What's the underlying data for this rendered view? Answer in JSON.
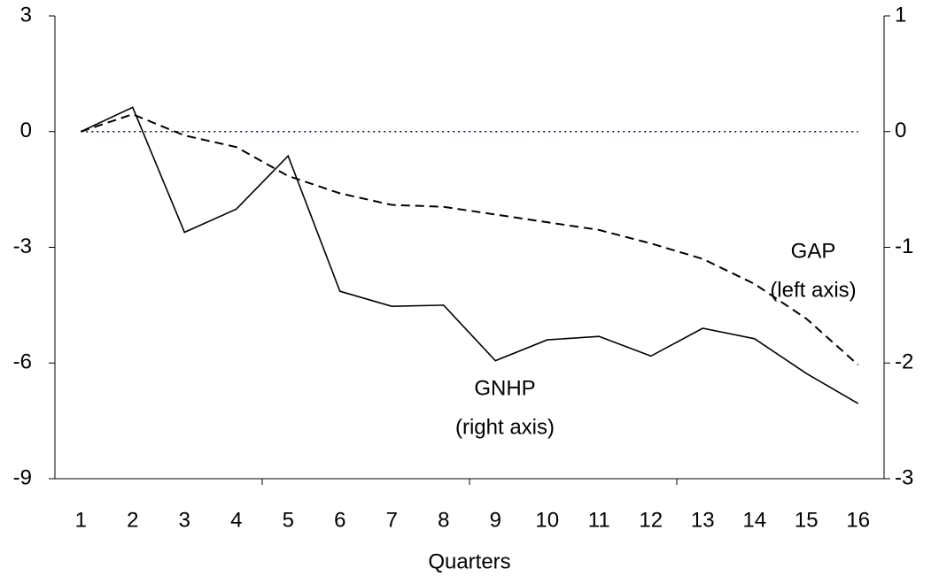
{
  "chart_data": {
    "type": "line",
    "xlabel": "Quarters",
    "categories": [
      "1",
      "2",
      "3",
      "4",
      "5",
      "6",
      "7",
      "8",
      "9",
      "10",
      "11",
      "12",
      "13",
      "14",
      "15",
      "16"
    ],
    "ylim": [
      -9,
      3
    ],
    "yticks": [
      -9,
      -6,
      -3,
      0,
      3
    ],
    "y2lim": [
      -3,
      1
    ],
    "y2ticks": [
      -3,
      -2,
      -1,
      0,
      1
    ],
    "hline": 0,
    "hline_color": "#000080",
    "series": [
      {
        "label": [
          "GAP",
          "(left axis)"
        ],
        "color": "#000000",
        "dashed": true,
        "axis": "y",
        "values": [
          0,
          0.45,
          -0.1,
          -0.4,
          -1.15,
          -1.6,
          -1.9,
          -1.95,
          -2.15,
          -2.35,
          -2.55,
          -2.9,
          -3.3,
          -3.95,
          -4.85,
          -6.05
        ]
      },
      {
        "label": [
          "GNHP",
          "(right axis)"
        ],
        "color": "#000000",
        "dashed": false,
        "axis": "y2",
        "values": [
          0,
          0.21,
          -0.87,
          -0.67,
          -0.21,
          -1.38,
          -1.51,
          -1.5,
          -1.98,
          -1.8,
          -1.77,
          -1.94,
          -1.7,
          -1.79,
          -2.09,
          -2.35
        ]
      }
    ]
  }
}
